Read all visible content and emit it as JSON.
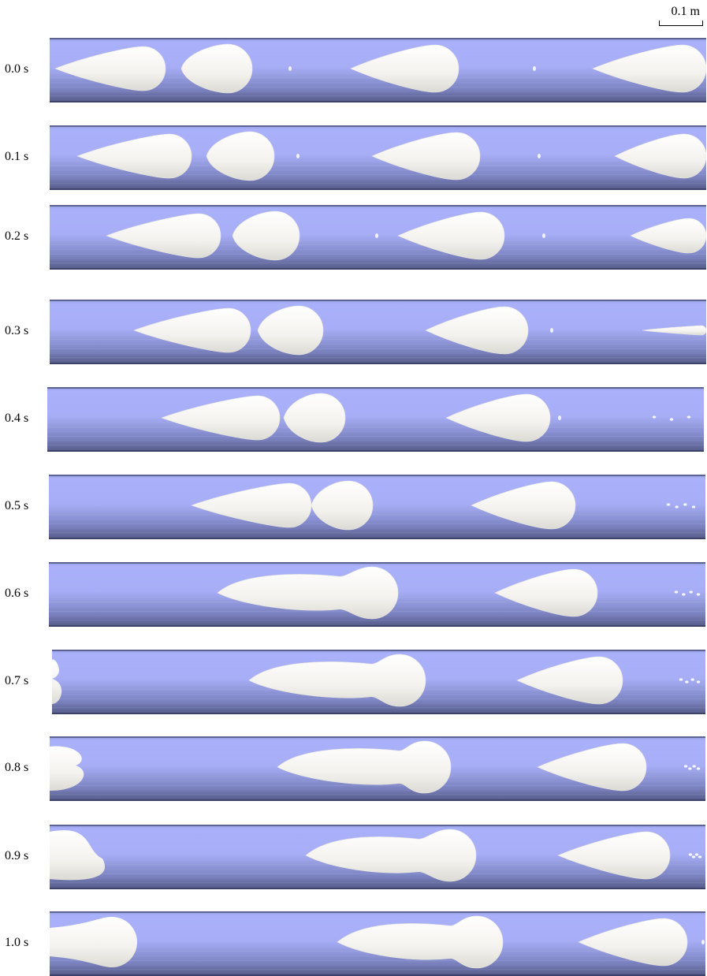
{
  "scale_bar": {
    "label": "0.1 m"
  },
  "frames": [
    {
      "time": "0.0 s"
    },
    {
      "time": "0.1 s"
    },
    {
      "time": "0.2 s"
    },
    {
      "time": "0.3 s"
    },
    {
      "time": "0.4 s"
    },
    {
      "time": "0.5 s"
    },
    {
      "time": "0.6 s"
    },
    {
      "time": "0.7 s"
    },
    {
      "time": "0.8 s"
    },
    {
      "time": "0.9 s"
    },
    {
      "time": "1.0 s"
    }
  ],
  "colors": {
    "pipe_top": "#aab1fb",
    "pipe_bottom": "#545a86",
    "bubble": "#f4f2ee"
  }
}
